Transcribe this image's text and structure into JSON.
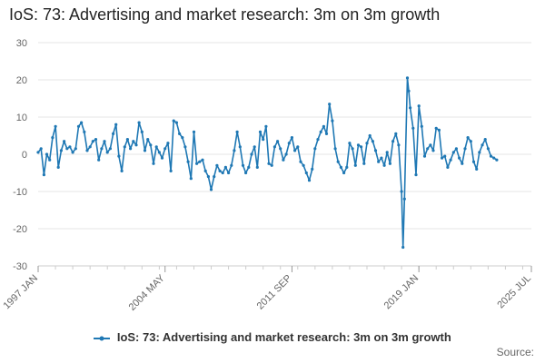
{
  "title": "IoS: 73: Advertising and market research: 3m on 3m growth",
  "source_label": "Source:",
  "colors": {
    "series": "#1f78b4",
    "grid": "#e6e6e6",
    "axis": "#cccccc"
  },
  "chart_data": {
    "type": "line",
    "title": "IoS: 73: Advertising and market research: 3m on 3m growth",
    "xlabel": "",
    "ylabel": "",
    "x_start": "1997-01",
    "x_end": "2025-07",
    "x_ticks": [
      "1997 JAN",
      "2004 MAY",
      "2011 SEP",
      "2019 JAN",
      "2025 JUL"
    ],
    "ylim": [
      -30,
      30
    ],
    "y_ticks": [
      30,
      20,
      10,
      0,
      -10,
      -20,
      -30
    ],
    "grid": true,
    "legend_position": "bottom",
    "series": [
      {
        "name": "IoS: 73: Advertising and market research: 3m on 3m growth",
        "points": [
          [
            "1997-01",
            0.5
          ],
          [
            "1997-03",
            1.5
          ],
          [
            "1997-05",
            -5.5
          ],
          [
            "1997-07",
            0.0
          ],
          [
            "1997-09",
            -1.5
          ],
          [
            "1997-11",
            4.5
          ],
          [
            "1998-01",
            7.5
          ],
          [
            "1998-03",
            -3.5
          ],
          [
            "1998-05",
            1.0
          ],
          [
            "1998-07",
            3.5
          ],
          [
            "1998-09",
            1.5
          ],
          [
            "1998-11",
            2.0
          ],
          [
            "1999-01",
            0.5
          ],
          [
            "1999-03",
            1.5
          ],
          [
            "1999-05",
            7.5
          ],
          [
            "1999-07",
            8.5
          ],
          [
            "1999-09",
            6.0
          ],
          [
            "1999-11",
            1.0
          ],
          [
            "2000-01",
            2.0
          ],
          [
            "2000-03",
            3.5
          ],
          [
            "2000-05",
            4.0
          ],
          [
            "2000-07",
            -1.5
          ],
          [
            "2000-09",
            1.5
          ],
          [
            "2000-11",
            3.5
          ],
          [
            "2001-01",
            0.5
          ],
          [
            "2001-03",
            1.5
          ],
          [
            "2001-05",
            5.5
          ],
          [
            "2001-07",
            8.0
          ],
          [
            "2001-09",
            -0.5
          ],
          [
            "2001-11",
            -4.5
          ],
          [
            "2002-01",
            2.0
          ],
          [
            "2002-03",
            4.0
          ],
          [
            "2002-05",
            1.5
          ],
          [
            "2002-07",
            3.5
          ],
          [
            "2002-09",
            2.5
          ],
          [
            "2002-11",
            8.5
          ],
          [
            "2003-01",
            6.0
          ],
          [
            "2003-03",
            1.0
          ],
          [
            "2003-05",
            4.0
          ],
          [
            "2003-07",
            2.5
          ],
          [
            "2003-09",
            -2.5
          ],
          [
            "2003-11",
            2.0
          ],
          [
            "2004-01",
            0.5
          ],
          [
            "2004-03",
            -1.0
          ],
          [
            "2004-05",
            1.5
          ],
          [
            "2004-07",
            3.0
          ],
          [
            "2004-09",
            -4.5
          ],
          [
            "2004-11",
            9.0
          ],
          [
            "2005-01",
            8.5
          ],
          [
            "2005-03",
            5.5
          ],
          [
            "2005-05",
            4.5
          ],
          [
            "2005-07",
            2.0
          ],
          [
            "2005-09",
            -2.0
          ],
          [
            "2005-11",
            -6.5
          ],
          [
            "2006-01",
            6.0
          ],
          [
            "2006-03",
            -2.5
          ],
          [
            "2006-05",
            -2.0
          ],
          [
            "2006-07",
            -1.5
          ],
          [
            "2006-09",
            -4.5
          ],
          [
            "2006-11",
            -6.0
          ],
          [
            "2007-01",
            -9.5
          ],
          [
            "2007-03",
            -6.0
          ],
          [
            "2007-05",
            -3.0
          ],
          [
            "2007-07",
            -4.5
          ],
          [
            "2007-09",
            -5.0
          ],
          [
            "2007-11",
            -3.5
          ],
          [
            "2008-01",
            -5.0
          ],
          [
            "2008-03",
            -3.0
          ],
          [
            "2008-05",
            1.0
          ],
          [
            "2008-07",
            6.0
          ],
          [
            "2008-09",
            2.0
          ],
          [
            "2008-11",
            -3.0
          ],
          [
            "2009-01",
            -5.0
          ],
          [
            "2009-03",
            -3.5
          ],
          [
            "2009-05",
            0.0
          ],
          [
            "2009-07",
            2.0
          ],
          [
            "2009-09",
            -3.5
          ],
          [
            "2009-11",
            6.0
          ],
          [
            "2010-01",
            4.0
          ],
          [
            "2010-03",
            7.5
          ],
          [
            "2010-05",
            -2.5
          ],
          [
            "2010-07",
            -3.0
          ],
          [
            "2010-09",
            2.0
          ],
          [
            "2010-11",
            3.5
          ],
          [
            "2011-01",
            1.5
          ],
          [
            "2011-03",
            -1.5
          ],
          [
            "2011-05",
            0.0
          ],
          [
            "2011-07",
            3.0
          ],
          [
            "2011-09",
            4.5
          ],
          [
            "2011-11",
            1.0
          ],
          [
            "2012-01",
            2.0
          ],
          [
            "2012-03",
            -2.0
          ],
          [
            "2012-05",
            -3.0
          ],
          [
            "2012-07",
            -5.0
          ],
          [
            "2012-09",
            -7.0
          ],
          [
            "2012-11",
            -4.0
          ],
          [
            "2013-01",
            1.5
          ],
          [
            "2013-03",
            4.0
          ],
          [
            "2013-05",
            6.0
          ],
          [
            "2013-07",
            7.5
          ],
          [
            "2013-09",
            5.5
          ],
          [
            "2013-11",
            13.5
          ],
          [
            "2014-01",
            9.0
          ],
          [
            "2014-03",
            1.5
          ],
          [
            "2014-05",
            -2.0
          ],
          [
            "2014-07",
            -3.5
          ],
          [
            "2014-09",
            -5.0
          ],
          [
            "2014-11",
            -3.5
          ],
          [
            "2015-01",
            3.0
          ],
          [
            "2015-03",
            1.5
          ],
          [
            "2015-05",
            -3.0
          ],
          [
            "2015-07",
            2.5
          ],
          [
            "2015-09",
            2.0
          ],
          [
            "2015-11",
            -2.5
          ],
          [
            "2016-01",
            3.0
          ],
          [
            "2016-03",
            5.0
          ],
          [
            "2016-05",
            3.5
          ],
          [
            "2016-07",
            1.0
          ],
          [
            "2016-09",
            -2.0
          ],
          [
            "2016-11",
            -1.0
          ],
          [
            "2017-01",
            -3.0
          ],
          [
            "2017-03",
            0.5
          ],
          [
            "2017-05",
            -2.5
          ],
          [
            "2017-07",
            3.5
          ],
          [
            "2017-09",
            5.5
          ],
          [
            "2017-11",
            2.5
          ],
          [
            "2018-01",
            -10.0
          ],
          [
            "2018-02",
            -25.0
          ],
          [
            "2018-03",
            -12.0
          ],
          [
            "2018-05",
            20.5
          ],
          [
            "2018-06",
            17.0
          ],
          [
            "2018-07",
            12.5
          ],
          [
            "2018-09",
            7.0
          ],
          [
            "2018-11",
            -5.5
          ],
          [
            "2019-01",
            13.0
          ],
          [
            "2019-03",
            7.5
          ],
          [
            "2019-05",
            -0.5
          ],
          [
            "2019-07",
            1.5
          ],
          [
            "2019-09",
            2.5
          ],
          [
            "2019-11",
            1.0
          ],
          [
            "2020-01",
            7.0
          ],
          [
            "2020-03",
            6.5
          ],
          [
            "2020-05",
            -1.0
          ],
          [
            "2020-07",
            -0.5
          ],
          [
            "2020-09",
            -3.5
          ],
          [
            "2020-11",
            -1.5
          ],
          [
            "2021-01",
            0.5
          ],
          [
            "2021-03",
            1.5
          ],
          [
            "2021-05",
            -1.0
          ],
          [
            "2021-07",
            -2.5
          ],
          [
            "2021-09",
            1.5
          ],
          [
            "2021-11",
            4.5
          ],
          [
            "2022-01",
            3.5
          ],
          [
            "2022-03",
            -2.0
          ],
          [
            "2022-05",
            -4.0
          ],
          [
            "2022-07",
            0.5
          ],
          [
            "2022-09",
            2.5
          ],
          [
            "2022-11",
            4.0
          ],
          [
            "2023-01",
            1.5
          ],
          [
            "2023-03",
            -0.5
          ],
          [
            "2023-05",
            -1.0
          ],
          [
            "2023-07",
            -1.5
          ]
        ]
      }
    ]
  }
}
